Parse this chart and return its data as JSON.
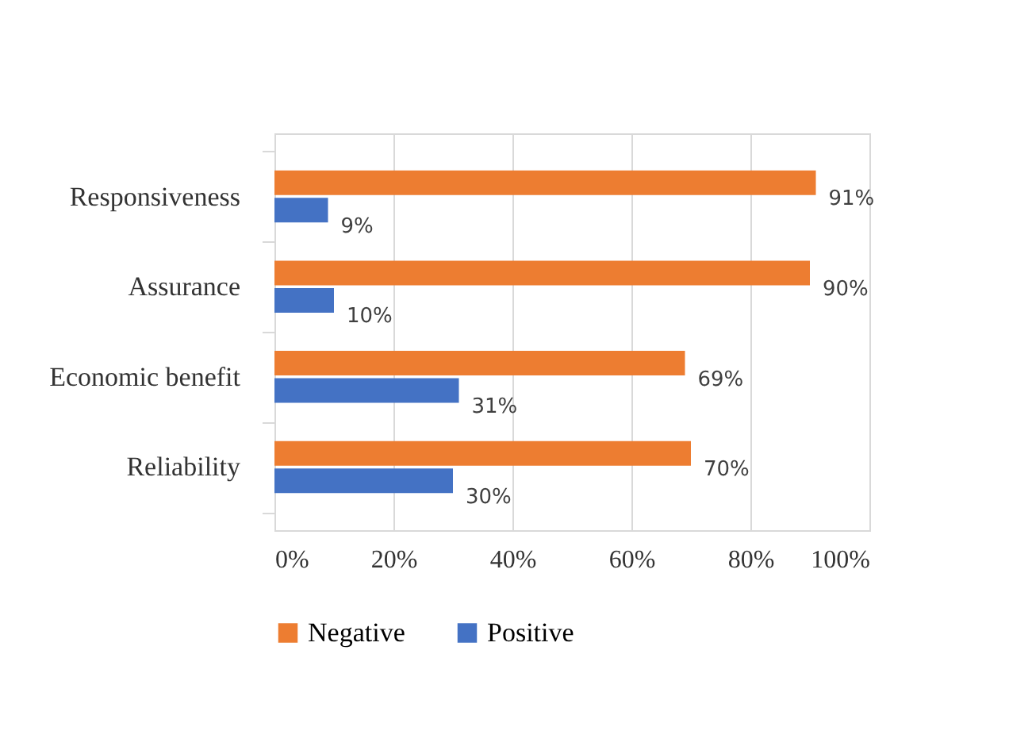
{
  "chart_data": {
    "type": "bar",
    "orientation": "horizontal",
    "categories": [
      "Responsiveness",
      "Assurance",
      "Economic benefit",
      "Reliability"
    ],
    "series": [
      {
        "name": "Negative",
        "color": "#ed7d31",
        "values": [
          91,
          90,
          69,
          70
        ],
        "value_labels": [
          "91%",
          "90%",
          "69%",
          "70%"
        ]
      },
      {
        "name": "Positive",
        "color": "#4472c4",
        "values": [
          9,
          10,
          31,
          30
        ],
        "value_labels": [
          "9%",
          "10%",
          "31%",
          "30%"
        ]
      }
    ],
    "xlim": [
      0,
      100
    ],
    "xticks": [
      {
        "value": 0,
        "label": "0%"
      },
      {
        "value": 20,
        "label": "20%"
      },
      {
        "value": 40,
        "label": "40%"
      },
      {
        "value": 60,
        "label": "60%"
      },
      {
        "value": 80,
        "label": "80%"
      },
      {
        "value": 100,
        "label": "100%"
      }
    ],
    "grid": "x",
    "legend": "bottom"
  }
}
